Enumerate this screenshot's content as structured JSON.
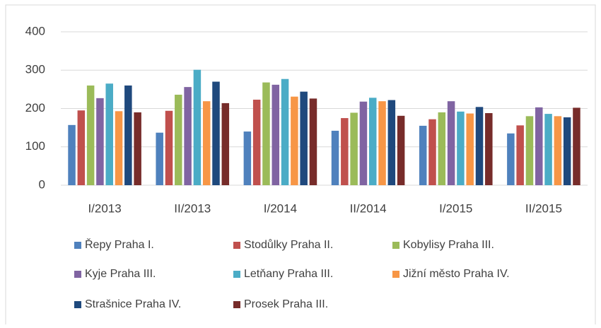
{
  "chart_data": {
    "type": "bar",
    "categories": [
      "I/2013",
      "II/2013",
      "I/2014",
      "II/2014",
      "I/2015",
      "II/2015"
    ],
    "series": [
      {
        "name": "Řepy Praha I.",
        "color": "#4f81bd",
        "values": [
          157,
          137,
          140,
          142,
          155,
          135
        ]
      },
      {
        "name": "Stodůlky Praha II.",
        "color": "#c0504d",
        "values": [
          195,
          194,
          223,
          175,
          172,
          156
        ]
      },
      {
        "name": "Kobylisy Praha III.",
        "color": "#9bbb59",
        "values": [
          260,
          236,
          268,
          189,
          190,
          180
        ]
      },
      {
        "name": "Kyje Praha III.",
        "color": "#8064a2",
        "values": [
          227,
          256,
          262,
          218,
          219,
          203
        ]
      },
      {
        "name": "Letňany Praha III.",
        "color": "#4bacc6",
        "values": [
          265,
          301,
          277,
          228,
          192,
          186
        ]
      },
      {
        "name": "Jižní město Praha IV.",
        "color": "#f79646",
        "values": [
          193,
          219,
          231,
          219,
          187,
          180
        ]
      },
      {
        "name": "Strašnice Praha IV.",
        "color": "#1f497d",
        "values": [
          260,
          270,
          244,
          222,
          204,
          177
        ]
      },
      {
        "name": "Prosek Praha III.",
        "color": "#772c2a",
        "values": [
          190,
          214,
          226,
          181,
          188,
          202
        ]
      }
    ],
    "ylim": [
      0,
      400
    ],
    "yticks": [
      0,
      100,
      200,
      300,
      400
    ],
    "grid": true
  }
}
